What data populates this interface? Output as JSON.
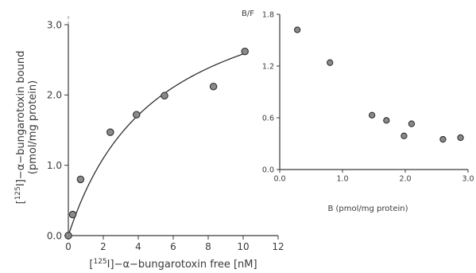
{
  "chart_data": [
    {
      "type": "scatter",
      "title": "",
      "xlabel_parts": {
        "pre": "[",
        "sup": "125",
        "post": "I]−α−bungarotoxin free  [nM]"
      },
      "ylabel_parts": {
        "pre": "[",
        "sup": "125",
        "post": "I]−α−bungarotoxin bound"
      },
      "ylabel2": "(pmol/mg protein)",
      "xlim": [
        0,
        12
      ],
      "ylim": [
        0,
        3.0
      ],
      "x_ticks": [
        0,
        2,
        4,
        6,
        8,
        10,
        12
      ],
      "x_tick_labels": [
        "0",
        "2",
        "4",
        "6",
        "8",
        "10",
        "12"
      ],
      "y_ticks": [
        0,
        1.0,
        2.0,
        3.0
      ],
      "y_tick_labels": [
        "0.0",
        "1.0",
        "2.0",
        "3.0"
      ],
      "series": [
        {
          "x": [
            0.0,
            0.25,
            0.7,
            2.4,
            3.9,
            5.5,
            8.3,
            10.1
          ],
          "y": [
            0.0,
            0.3,
            0.8,
            1.47,
            1.72,
            1.99,
            2.12,
            2.62
          ]
        }
      ],
      "fit_curve": {
        "type": "saturation",
        "bmax": 3.9,
        "kd": 5.1
      }
    },
    {
      "type": "scatter",
      "title": "",
      "xlabel": "B (pmol/mg protein)",
      "ylabel": "B/F",
      "xlim": [
        0,
        3.0
      ],
      "ylim": [
        0,
        1.8
      ],
      "x_ticks": [
        0,
        1.0,
        2.0,
        3.0
      ],
      "x_tick_labels": [
        "0.0",
        "1.0",
        "2.0",
        "3.0"
      ],
      "y_ticks": [
        0,
        0.6,
        1.2,
        1.8
      ],
      "y_tick_labels": [
        "0.0",
        "0.6",
        "1.2",
        "1.8"
      ],
      "series": [
        {
          "x": [
            0.28,
            0.8,
            1.47,
            1.7,
            1.98,
            2.1,
            2.6,
            2.88
          ],
          "y": [
            1.62,
            1.24,
            0.63,
            0.57,
            0.39,
            0.53,
            0.35,
            0.37
          ]
        }
      ]
    }
  ]
}
